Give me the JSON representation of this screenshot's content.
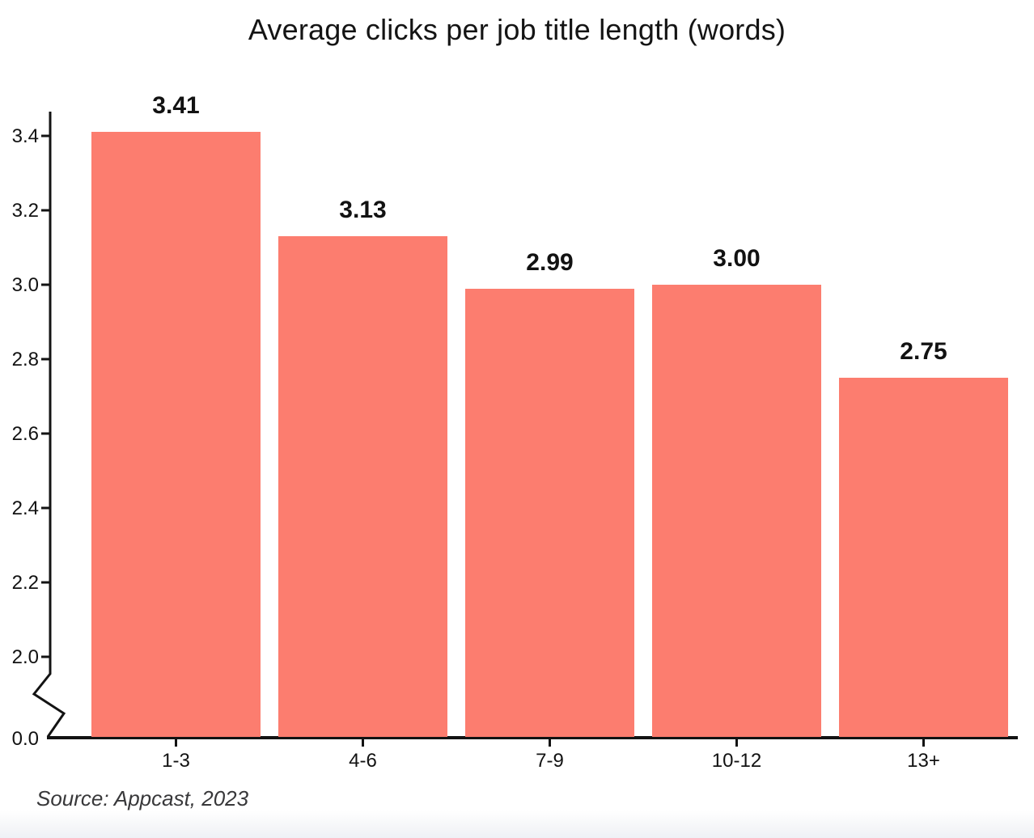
{
  "page": {
    "title": "Average clicks per job title length (words)",
    "source": "Source: Appcast, 2023"
  },
  "chart_data": {
    "type": "bar",
    "title": "Average clicks per job title length (words)",
    "categories": [
      "1-3",
      "4-6",
      "7-9",
      "10-12",
      "13+"
    ],
    "values": [
      3.41,
      3.13,
      2.99,
      3.0,
      2.75
    ],
    "bar_labels": [
      "3.41",
      "3.13",
      "2.99",
      "3.00",
      "2.75"
    ],
    "xlabel": "",
    "ylabel": "",
    "ylim": [
      0,
      3.5
    ],
    "y_ticks": [
      {
        "label": "3.4",
        "value": 3.4
      },
      {
        "label": "3.2",
        "value": 3.2
      },
      {
        "label": "3.0",
        "value": 3.0
      },
      {
        "label": "2.8",
        "value": 2.8
      },
      {
        "label": "2.6",
        "value": 2.6
      },
      {
        "label": "2.4",
        "value": 2.4
      },
      {
        "label": "2.2",
        "value": 2.2
      },
      {
        "label": "2.0",
        "value": 2.0
      },
      {
        "label": "0.0",
        "value": 0.0
      }
    ],
    "axis_break": true,
    "grid": false,
    "legend": false,
    "bar_color": "#FC7D6F",
    "axis_color": "#131313",
    "source": "Source: Appcast, 2023"
  }
}
